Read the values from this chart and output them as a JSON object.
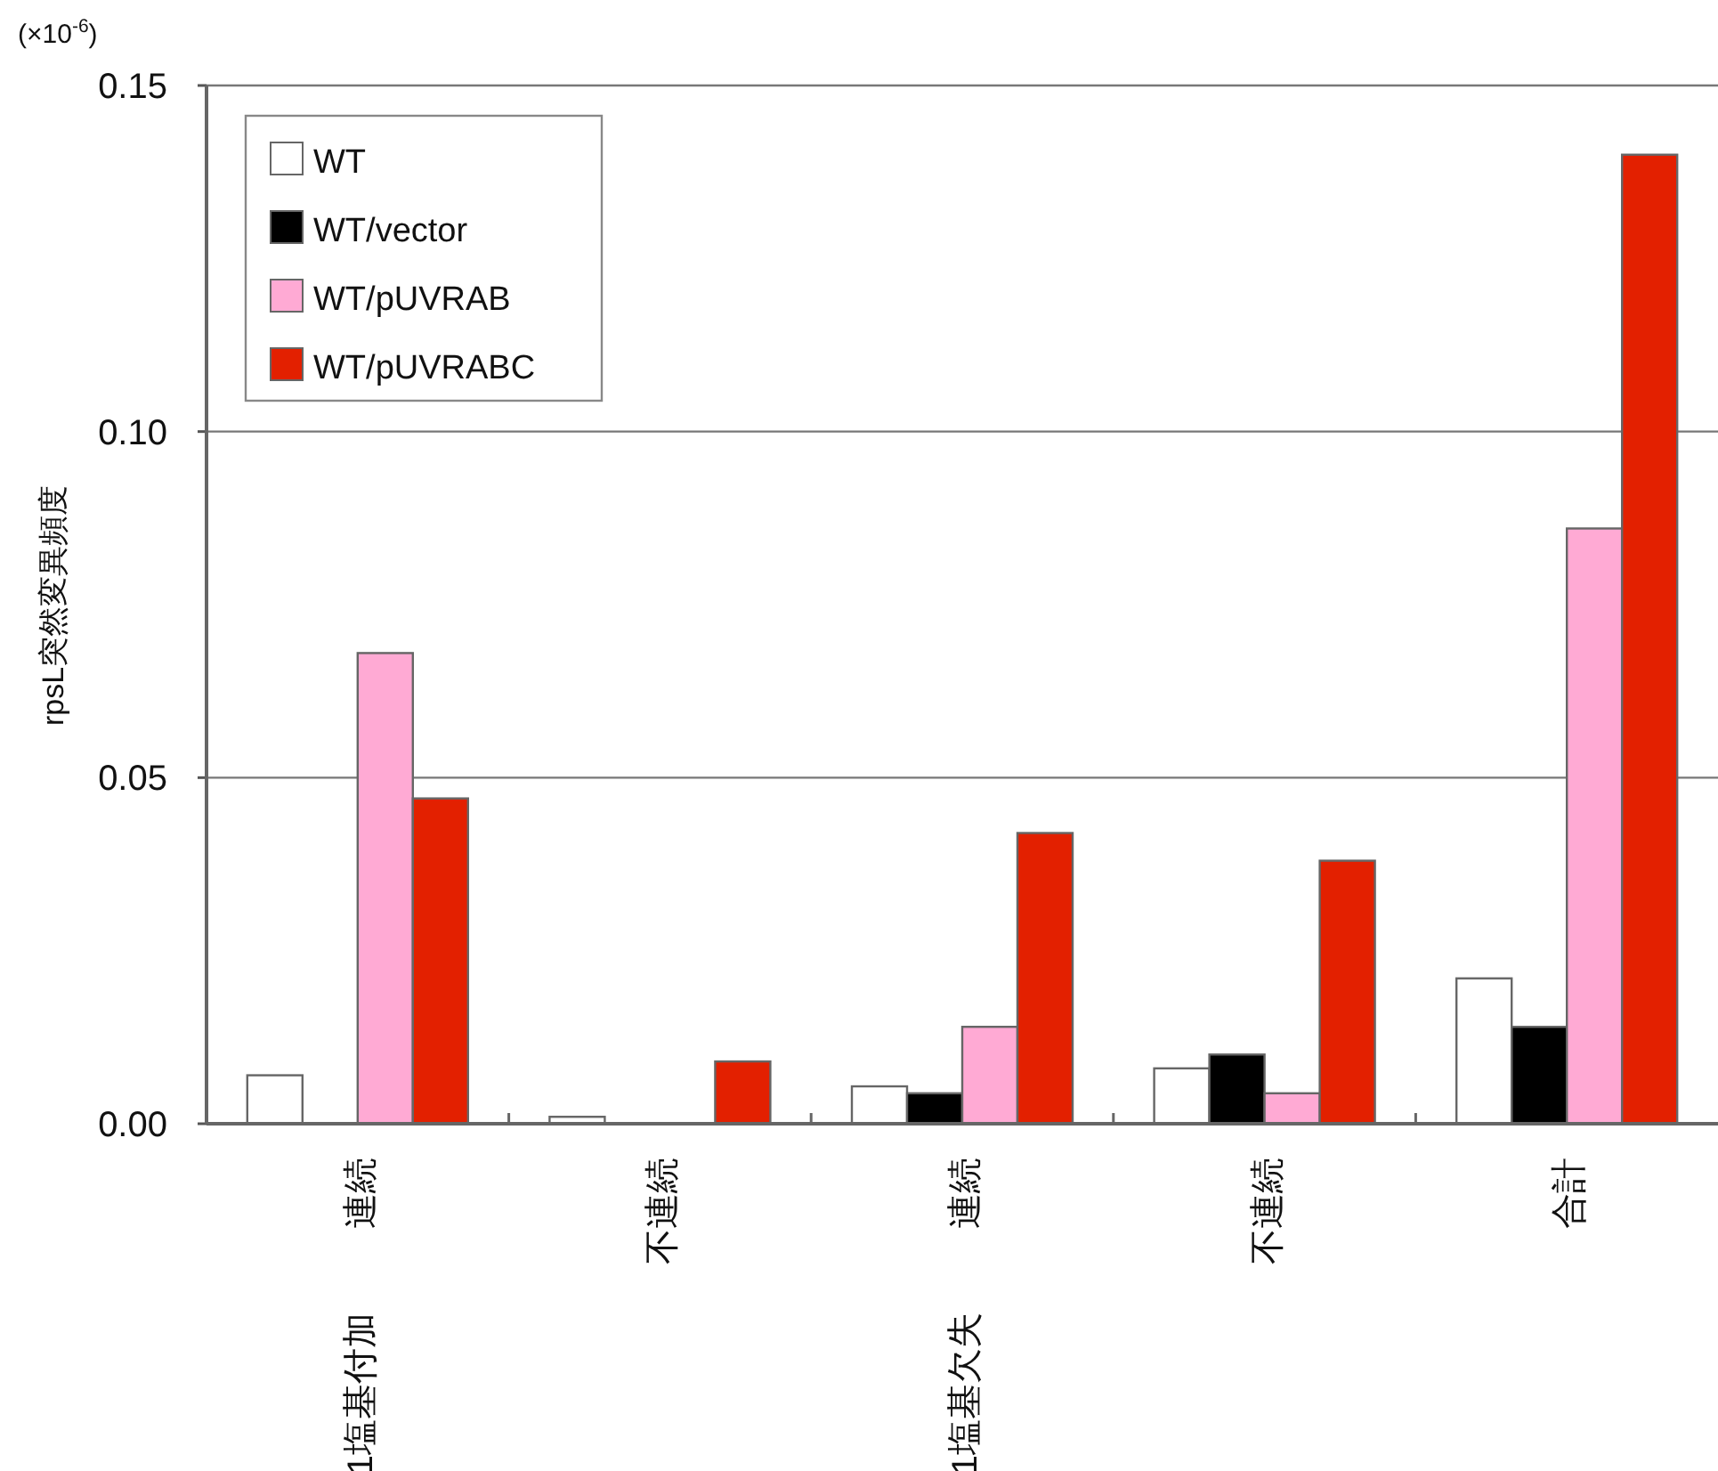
{
  "chart_data": {
    "type": "bar",
    "ylabel": "rpsL突然変異頻度",
    "categories": [
      "連続",
      "不連続",
      "連続",
      "不連続",
      "合計"
    ],
    "annotations": [
      "(×10$^{-6}$)",
      "1塩基付加",
      "1塩基欠失"
    ],
    "series": [
      {
        "name": "WT",
        "color": "#ffffff",
        "values": [
          0.007,
          0.001,
          0.0054,
          0.008,
          0.021
        ]
      },
      {
        "name": "WT/vector",
        "color": "#000000",
        "values": [
          0,
          0,
          0.0044,
          0.01,
          0.014
        ]
      },
      {
        "name": "WT/pUVRAB",
        "color": "#ffaad4",
        "values": [
          0.068,
          0,
          0.014,
          0.0044,
          0.086
        ]
      },
      {
        "name": "WT/pUVRABC",
        "color": "#e32000",
        "values": [
          0.047,
          0.009,
          0.042,
          0.038,
          0.14
        ]
      }
    ],
    "ylim": [
      0,
      0.15
    ],
    "yticks": [
      {
        "value": 0,
        "label": "0.00"
      },
      {
        "value": 0.05,
        "label": "0.05"
      },
      {
        "value": 0.1,
        "label": "0.10"
      },
      {
        "value": 0.15,
        "label": "0.15"
      }
    ],
    "grid": "y",
    "legend": "top left"
  }
}
